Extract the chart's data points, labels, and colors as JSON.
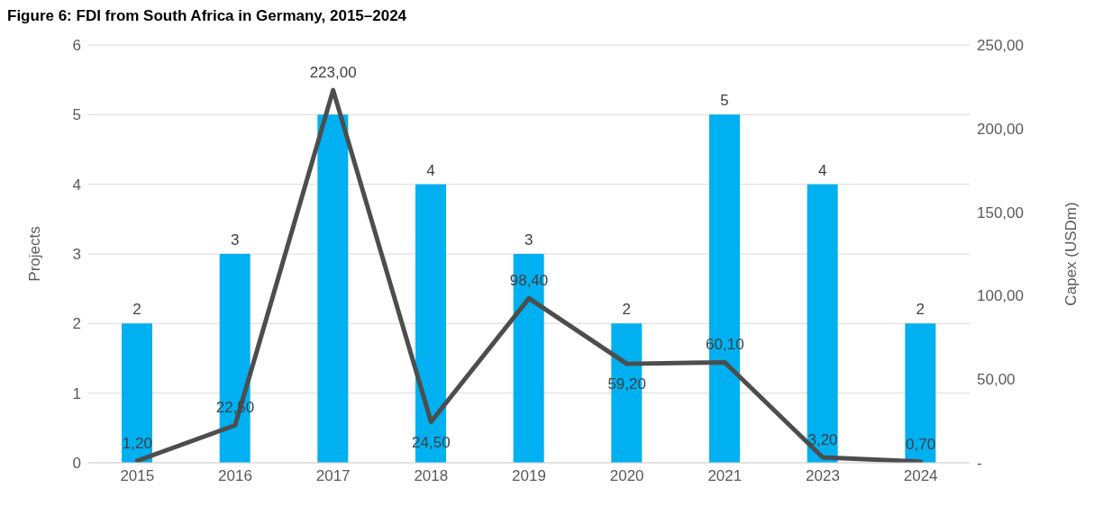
{
  "chart_data": {
    "type": "bar",
    "title": "Figure 6: FDI from South Africa in Germany, 2015–2024",
    "categories": [
      "2015",
      "2016",
      "2017",
      "2018",
      "2019",
      "2020",
      "2021",
      "2023",
      "2024"
    ],
    "series": [
      {
        "color": "#00b0f0",
        "values": [
          2,
          3,
          5,
          4,
          3,
          2,
          5,
          4,
          2
        ],
        "value_labels": [
          "2",
          "3",
          null,
          "4",
          "3",
          "2",
          "5",
          "4",
          "2"
        ]
      },
      {
        "type": "line",
        "axis": "y2",
        "color": "#4d4d4d",
        "values": [
          1.2,
          22.5,
          223.0,
          24.5,
          98.4,
          59.2,
          60.1,
          3.2,
          0.7
        ],
        "value_labels": [
          "1,20",
          "22,50",
          "223,00",
          "24,50",
          "98,40",
          "59,20",
          "60,10",
          "3,20",
          "0,70"
        ]
      }
    ],
    "ylabel": "Projects",
    "y2label": "Capex (USDm)",
    "ylim": [
      0,
      6
    ],
    "yticks": [
      0,
      1,
      2,
      3,
      4,
      5,
      6
    ],
    "y2lim": [
      0,
      250
    ],
    "y2ticks": [
      {
        "value": 0,
        "label": "-"
      },
      {
        "value": 50,
        "label": "50,00"
      },
      {
        "value": 100,
        "label": "100,00"
      },
      {
        "value": 150,
        "label": "150,00"
      },
      {
        "value": 200,
        "label": "200,00"
      },
      {
        "value": 250,
        "label": "250,00"
      }
    ],
    "grid": "y",
    "legend": false,
    "marker": "none",
    "line_style": "solid"
  }
}
